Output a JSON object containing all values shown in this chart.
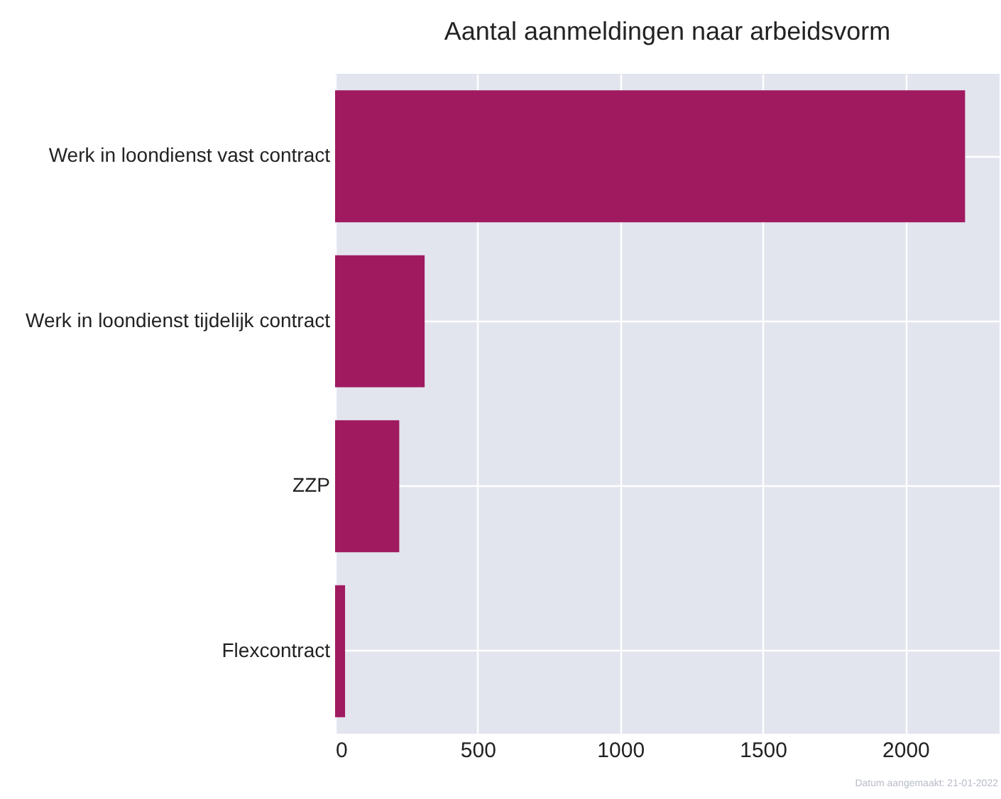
{
  "chart_data": {
    "type": "bar",
    "orientation": "horizontal",
    "title": "Aantal aanmeldingen naar arbeidsvorm",
    "categories": [
      "Werk in loondienst vast contract",
      "Werk in loondienst tijdelijk contract",
      "ZZP",
      "Flexcontract"
    ],
    "values": [
      2209,
      314,
      225,
      35
    ],
    "color": "#a01a60",
    "xlim": [
      0,
      2330
    ],
    "xticks": [
      0,
      500,
      1000,
      1500,
      2000
    ],
    "grid": true,
    "annotations": [
      "Datum aangemaakt: 21-01-2022"
    ]
  }
}
